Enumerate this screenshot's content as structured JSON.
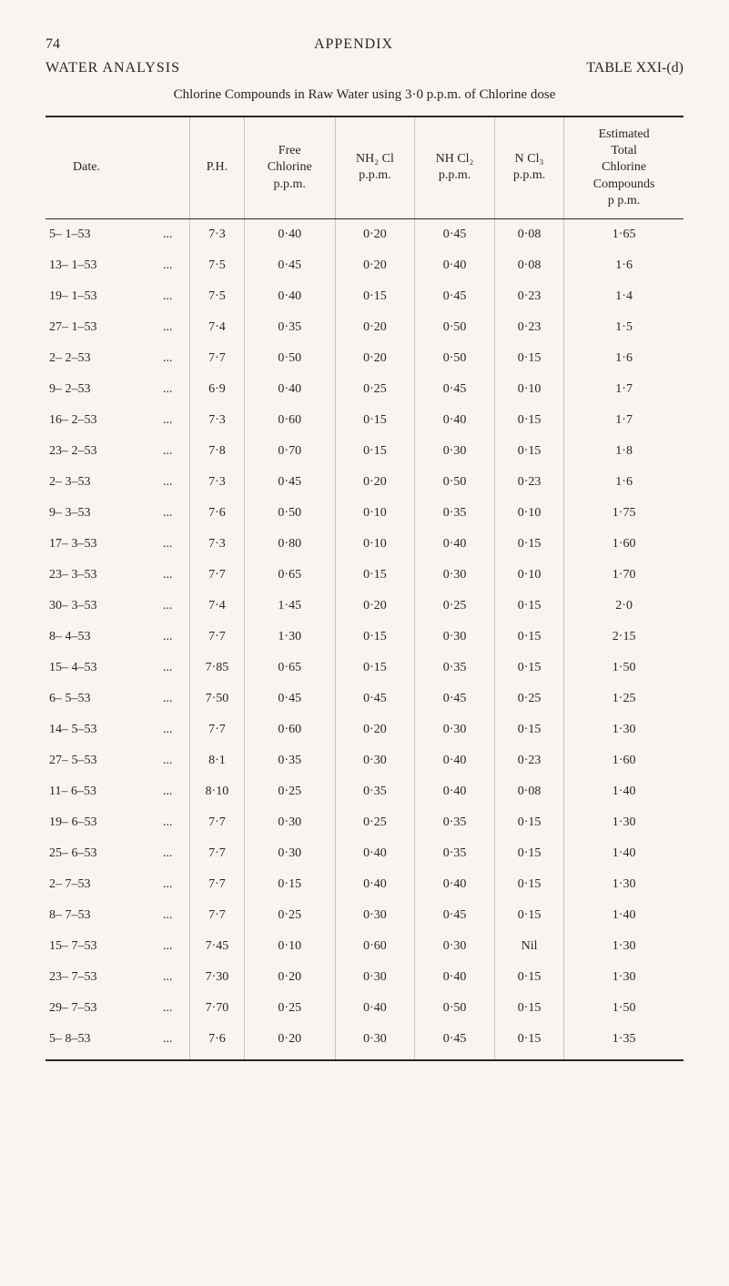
{
  "page_number": "74",
  "appendix": "APPENDIX",
  "section": "WATER ANALYSIS",
  "table_ref": "TABLE XXI-(d)",
  "caption": "Chlorine Compounds in Raw Water using 3·0 p.p.m. of Chlorine dose",
  "columns": [
    "Date.",
    "",
    "P.H.",
    "Free\nChlorine\np.p.m.",
    "NH₂ Cl\np.p.m.",
    "NH Cl₂\np.p.m.",
    "N Cl₃\np.p.m.",
    "Estimated\nTotal\nChlorine\nCompounds\np p.m."
  ],
  "rows": [
    [
      "5– 1–53",
      "...",
      "7·3",
      "0·40",
      "0·20",
      "0·45",
      "0·08",
      "1·65"
    ],
    [
      "13– 1–53",
      "...",
      "7·5",
      "0·45",
      "0·20",
      "0·40",
      "0·08",
      "1·6"
    ],
    [
      "19– 1–53",
      "...",
      "7·5",
      "0·40",
      "0·15",
      "0·45",
      "0·23",
      "1·4"
    ],
    [
      "27– 1–53",
      "...",
      "7·4",
      "0·35",
      "0·20",
      "0·50",
      "0·23",
      "1·5"
    ],
    [
      "2– 2–53",
      "...",
      "7·7",
      "0·50",
      "0·20",
      "0·50",
      "0·15",
      "1·6"
    ],
    [
      "9– 2–53",
      "...",
      "6·9",
      "0·40",
      "0·25",
      "0·45",
      "0·10",
      "1·7"
    ],
    [
      "16– 2–53",
      "...",
      "7·3",
      "0·60",
      "0·15",
      "0·40",
      "0·15",
      "1·7"
    ],
    [
      "23– 2–53",
      "...",
      "7·8",
      "0·70",
      "0·15",
      "0·30",
      "0·15",
      "1·8"
    ],
    [
      "2– 3–53",
      "...",
      "7·3",
      "0·45",
      "0·20",
      "0·50",
      "0·23",
      "1·6"
    ],
    [
      "9– 3–53",
      "...",
      "7·6",
      "0·50",
      "0·10",
      "0·35",
      "0·10",
      "1·75"
    ],
    [
      "17– 3–53",
      "...",
      "7·3",
      "0·80",
      "0·10",
      "0·40",
      "0·15",
      "1·60"
    ],
    [
      "23– 3–53",
      "...",
      "7·7",
      "0·65",
      "0·15",
      "0·30",
      "0·10",
      "1·70"
    ],
    [
      "30– 3–53",
      "...",
      "7·4",
      "1·45",
      "0·20",
      "0·25",
      "0·15",
      "2·0"
    ],
    [
      "8– 4–53",
      "...",
      "7·7",
      "1·30",
      "0·15",
      "0·30",
      "0·15",
      "2·15"
    ],
    [
      "15– 4–53",
      "...",
      "7·85",
      "0·65",
      "0·15",
      "0·35",
      "0·15",
      "1·50"
    ],
    [
      "6– 5–53",
      "...",
      "7·50",
      "0·45",
      "0·45",
      "0·45",
      "0·25",
      "1·25"
    ],
    [
      "14– 5–53",
      "...",
      "7·7",
      "0·60",
      "0·20",
      "0·30",
      "0·15",
      "1·30"
    ],
    [
      "27– 5–53",
      "...",
      "8·1",
      "0·35",
      "0·30",
      "0·40",
      "0·23",
      "1·60"
    ],
    [
      "11– 6–53",
      "...",
      "8·10",
      "0·25",
      "0·35",
      "0·40",
      "0·08",
      "1·40"
    ],
    [
      "19– 6–53",
      "...",
      "7·7",
      "0·30",
      "0·25",
      "0·35",
      "0·15",
      "1·30"
    ],
    [
      "25– 6–53",
      "...",
      "7·7",
      "0·30",
      "0·40",
      "0·35",
      "0·15",
      "1·40"
    ],
    [
      "2– 7–53",
      "...",
      "7·7",
      "0·15",
      "0·40",
      "0·40",
      "0·15",
      "1·30"
    ],
    [
      "8– 7–53",
      "...",
      "7·7",
      "0·25",
      "0·30",
      "0·45",
      "0·15",
      "1·40"
    ],
    [
      "15– 7–53",
      "...",
      "7·45",
      "0·10",
      "0·60",
      "0·30",
      "Nil",
      "1·30"
    ],
    [
      "23– 7–53",
      "...",
      "7·30",
      "0·20",
      "0·30",
      "0·40",
      "0·15",
      "1·30"
    ],
    [
      "29– 7–53",
      "...",
      "7·70",
      "0·25",
      "0·40",
      "0·50",
      "0·15",
      "1·50"
    ],
    [
      "5– 8–53",
      "...",
      "7·6",
      "0·20",
      "0·30",
      "0·45",
      "0·15",
      "1·35"
    ]
  ]
}
